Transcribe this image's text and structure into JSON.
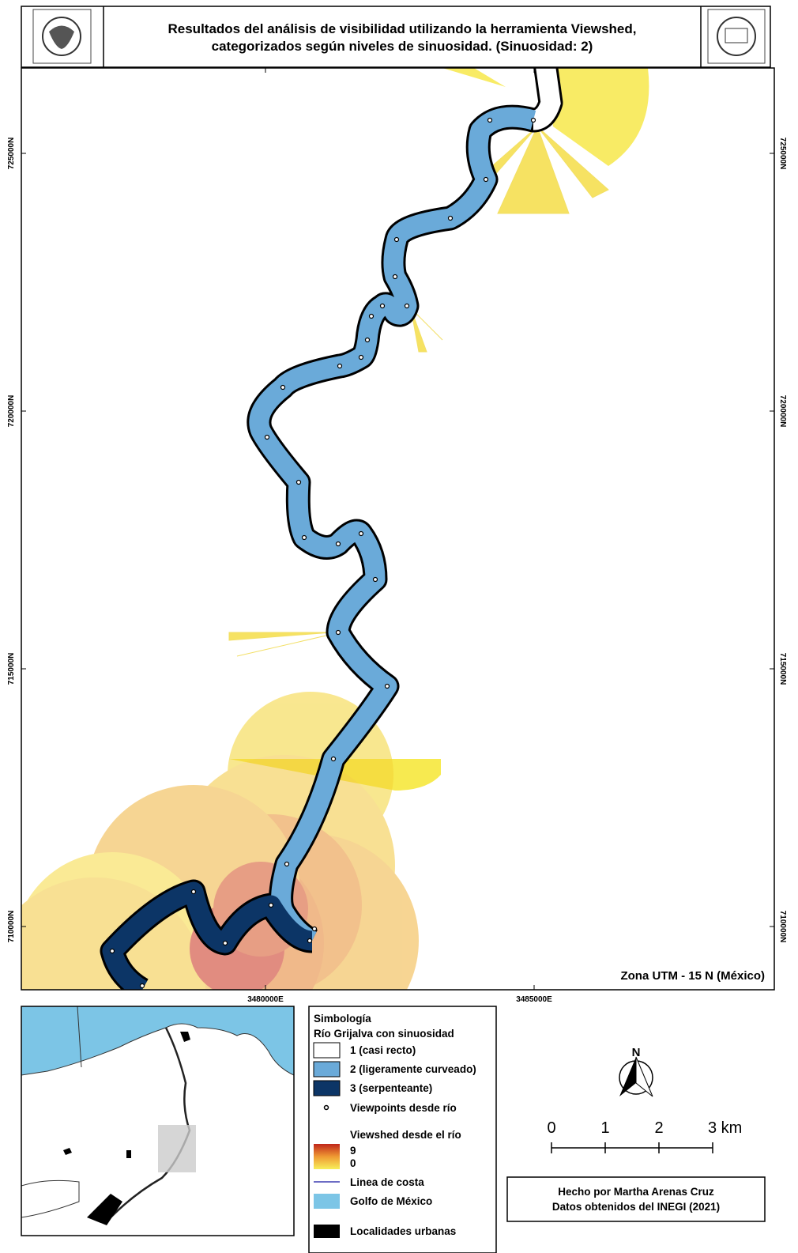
{
  "header": {
    "title": [
      "Resultados del análisis de visibilidad utilizando la herramienta Viewshed,",
      "categorizados según niveles de sinuosidad. (Sinuosidad: 2)"
    ]
  },
  "map": {
    "northing_labels": [
      "725000N",
      "720000N",
      "715000N",
      "710000N"
    ],
    "easting_labels": [
      "3480000E",
      "3485000E"
    ],
    "projection": "Zona UTM - 15 N (México)"
  },
  "legend": {
    "title": "Simbología",
    "subtitle": "Río Grijalva con sinuosidad",
    "items": [
      "1 (casi recto)",
      "2 (ligeramente curveado)",
      "3 (serpenteante)",
      "Viewpoints desde río"
    ],
    "viewshed_title": "Viewshed desde el río",
    "viewshed_max": "9",
    "viewshed_min": "0",
    "other_items": [
      "Linea de costa",
      "Golfo de México",
      "Localidades urbanas"
    ]
  },
  "north": "N",
  "scale": [
    "0",
    "1",
    "2",
    "3 km"
  ],
  "credits": [
    "Hecho por Martha Arenas Cruz",
    "Datos obtenidos del INEGI (2021)"
  ]
}
